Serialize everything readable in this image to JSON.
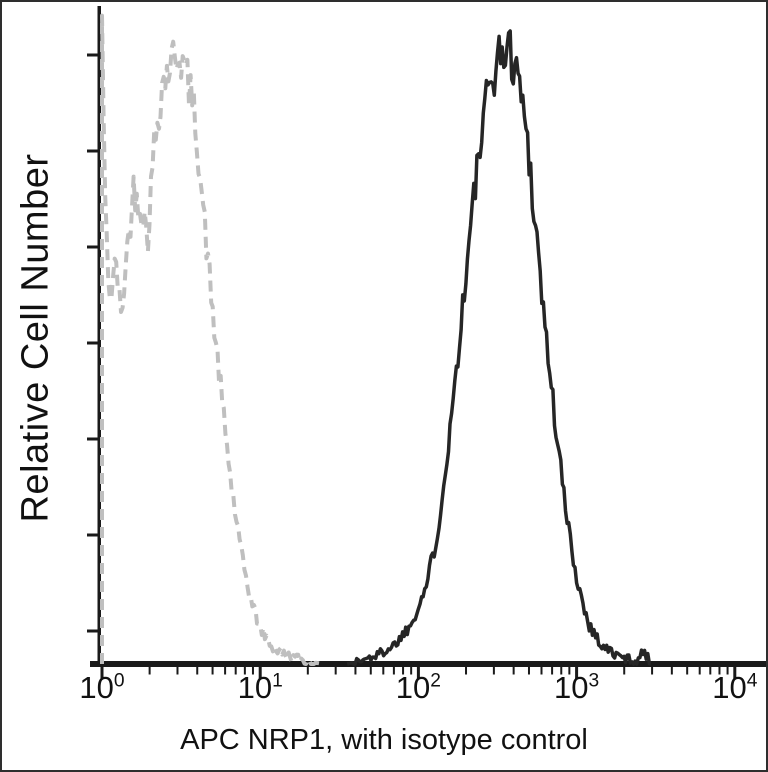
{
  "figure": {
    "xlabel": "APC NRP1, with isotype control",
    "ylabel": "Relative Cell Number"
  },
  "chart_data": {
    "type": "area",
    "variant": "flow-cytometry-histogram-overlay",
    "title": "",
    "xlabel": "APC NRP1, with isotype control",
    "ylabel": "Relative Cell Number",
    "x_scale": "log10",
    "x_range": [
      1,
      10000
    ],
    "x_ticks": [
      1,
      10,
      100,
      1000,
      10000
    ],
    "x_tick_exponents": [
      0,
      1,
      2,
      3,
      4
    ],
    "x_tick_labels": [
      "10⁰",
      "10¹",
      "10²",
      "10³",
      "10⁴"
    ],
    "y_axis": "relative scale, unlabeled tick marks",
    "y_tick_count": 7,
    "grid": false,
    "legend": "none",
    "series": [
      {
        "name": "Isotype control",
        "style": "dashed",
        "color": "#bfbfbf",
        "peak_x": 3,
        "peak_rel_height": 0.94,
        "profile_log10x_height": [
          [
            0.0,
            0.99
          ],
          [
            0.02,
            0.7
          ],
          [
            0.05,
            0.56
          ],
          [
            0.09,
            0.62
          ],
          [
            0.12,
            0.53
          ],
          [
            0.16,
            0.64
          ],
          [
            0.2,
            0.73
          ],
          [
            0.25,
            0.7
          ],
          [
            0.29,
            0.66
          ],
          [
            0.33,
            0.8
          ],
          [
            0.38,
            0.89
          ],
          [
            0.44,
            0.93
          ],
          [
            0.49,
            0.94
          ],
          [
            0.54,
            0.9
          ],
          [
            0.59,
            0.84
          ],
          [
            0.64,
            0.7
          ],
          [
            0.7,
            0.54
          ],
          [
            0.76,
            0.4
          ],
          [
            0.82,
            0.27
          ],
          [
            0.88,
            0.17
          ],
          [
            0.94,
            0.1
          ],
          [
            1.0,
            0.055
          ],
          [
            1.08,
            0.025
          ],
          [
            1.18,
            0.012
          ],
          [
            1.3,
            0.004
          ],
          [
            1.4,
            0.0
          ]
        ]
      },
      {
        "name": "APC NRP1",
        "style": "solid",
        "color": "#262626",
        "peak_x": 360,
        "peak_rel_height": 0.95,
        "profile_log10x_height": [
          [
            1.55,
            0.0
          ],
          [
            1.65,
            0.006
          ],
          [
            1.75,
            0.015
          ],
          [
            1.85,
            0.03
          ],
          [
            1.95,
            0.06
          ],
          [
            2.05,
            0.12
          ],
          [
            2.12,
            0.2
          ],
          [
            2.2,
            0.36
          ],
          [
            2.28,
            0.55
          ],
          [
            2.36,
            0.74
          ],
          [
            2.44,
            0.88
          ],
          [
            2.5,
            0.93
          ],
          [
            2.56,
            0.95
          ],
          [
            2.62,
            0.92
          ],
          [
            2.68,
            0.83
          ],
          [
            2.74,
            0.68
          ],
          [
            2.8,
            0.52
          ],
          [
            2.87,
            0.36
          ],
          [
            2.94,
            0.22
          ],
          [
            3.01,
            0.12
          ],
          [
            3.08,
            0.06
          ],
          [
            3.16,
            0.028
          ],
          [
            3.26,
            0.012
          ],
          [
            3.38,
            0.004
          ],
          [
            3.43,
            0.02
          ],
          [
            3.47,
            0.0
          ]
        ]
      }
    ]
  },
  "colors": {
    "background": "#ffffff",
    "axis": "#1a1a1a",
    "solid_series": "#262626",
    "dashed_series": "#bfbfbf",
    "border": "#2e2e2e"
  }
}
